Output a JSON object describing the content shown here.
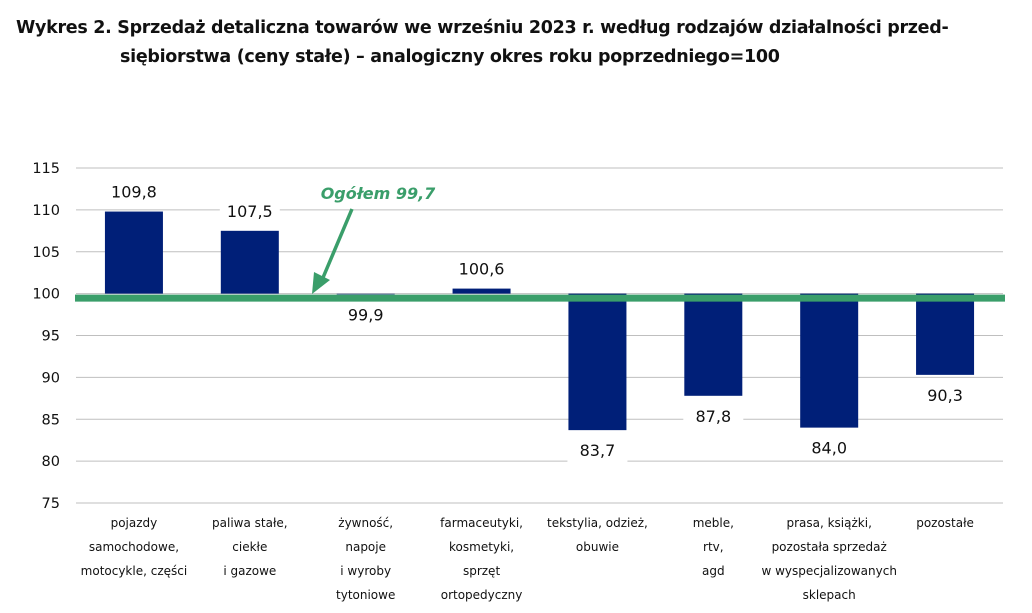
{
  "title": {
    "line1": "Wykres 2. Sprzedaż detaliczna towarów we wrześniu 2023 r. według rodzajów działalności przed-",
    "line2": "siębiorstwa (ceny stałe) – analogiczny okres roku poprzedniego=100"
  },
  "colors": {
    "bar": "#001f78",
    "reference_line": "#3a9e6a",
    "grid": "#bfbfbf",
    "annotation": "#3a9e6a"
  },
  "chart_data": {
    "type": "bar",
    "title": "Wykres 2. Sprzedaż detaliczna towarów we wrześniu 2023 r. według rodzajów działalności przedsiębiorstwa (ceny stałe) – analogiczny okres roku poprzedniego=100",
    "xlabel": "",
    "ylabel": "",
    "baseline": 100,
    "ylim": [
      75,
      115
    ],
    "yticks": [
      75,
      80,
      85,
      90,
      95,
      100,
      105,
      110,
      115
    ],
    "grid": true,
    "categories": [
      [
        "pojazdy",
        "samochodowe,",
        "motocykle, części"
      ],
      [
        "paliwa stałe,",
        "ciekłe",
        "i gazowe"
      ],
      [
        "żywność,",
        "napoje",
        "i wyroby",
        "tytoniowe"
      ],
      [
        "farmaceutyki,",
        "kosmetyki,",
        "sprzęt",
        "ortopedyczny"
      ],
      [
        "tekstylia, odzież,",
        "obuwie"
      ],
      [
        "meble,",
        "rtv,",
        "agd"
      ],
      [
        "prasa, książki,",
        "pozostała sprzedaż",
        "w wyspecjalizowanych",
        "sklepach"
      ],
      [
        "pozostałe"
      ]
    ],
    "values": [
      109.8,
      107.5,
      99.9,
      100.6,
      83.7,
      87.8,
      84.0,
      90.3
    ],
    "value_labels": [
      "109,8",
      "107,5",
      "99,9",
      "100,6",
      "83,7",
      "87,8",
      "84,0",
      "90,3"
    ],
    "reference": {
      "value": 99.7,
      "label": "Ogółem 99,7"
    }
  }
}
